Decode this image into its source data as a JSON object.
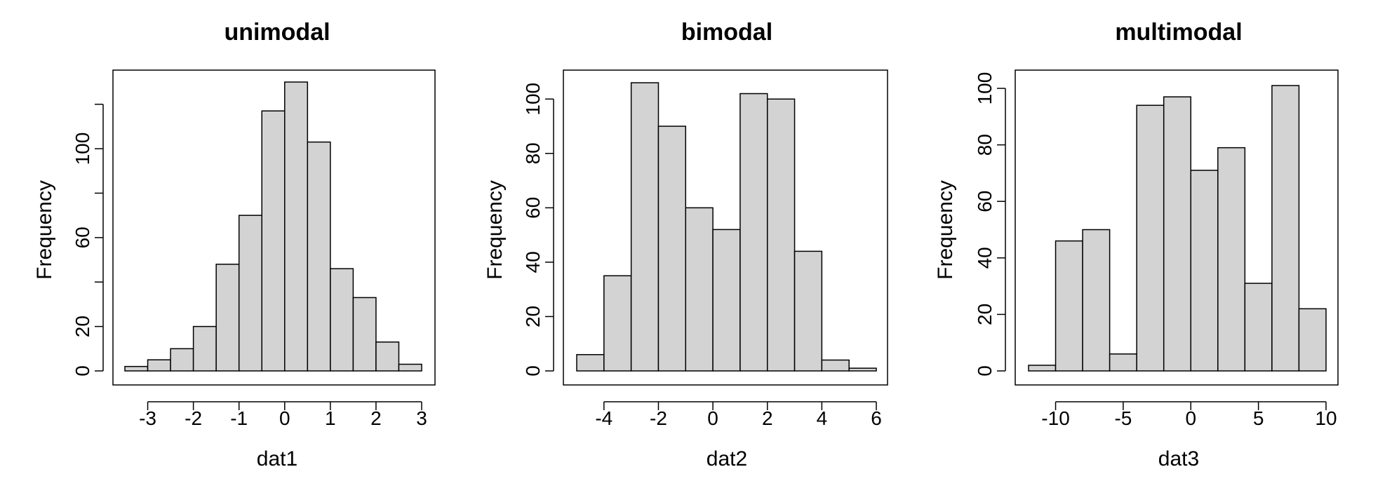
{
  "chart_data": [
    {
      "type": "bar",
      "title": "unimodal",
      "xlabel": "dat1",
      "ylabel": "Frequency",
      "bin_edges": [
        -3.5,
        -3.0,
        -2.5,
        -2.0,
        -1.5,
        -1.0,
        -0.5,
        0.0,
        0.5,
        1.0,
        1.5,
        2.0,
        2.5,
        3.0
      ],
      "values": [
        2,
        5,
        10,
        20,
        48,
        70,
        117,
        130,
        103,
        46,
        33,
        13,
        3
      ],
      "xlim": [
        -3.5,
        3.0
      ],
      "ylim": [
        0,
        130
      ],
      "x_ticks": [
        -3,
        -2,
        -1,
        0,
        1,
        2,
        3
      ],
      "x_tick_labels": [
        "-3",
        "-2",
        "-1",
        "0",
        "1",
        "2",
        "3"
      ],
      "y_ticks": [
        0,
        20,
        40,
        60,
        80,
        100,
        120
      ],
      "y_tick_labels": [
        "0",
        "20",
        "",
        "60",
        "",
        "100",
        ""
      ]
    },
    {
      "type": "bar",
      "title": "bimodal",
      "xlabel": "dat2",
      "ylabel": "Frequency",
      "bin_edges": [
        -5,
        -4,
        -3,
        -2,
        -1,
        0,
        1,
        2,
        3,
        4,
        5,
        6
      ],
      "values": [
        6,
        35,
        106,
        90,
        60,
        52,
        102,
        100,
        44,
        4,
        1
      ],
      "xlim": [
        -5,
        6
      ],
      "ylim": [
        0,
        106
      ],
      "x_ticks": [
        -4,
        -2,
        0,
        2,
        4,
        6
      ],
      "x_tick_labels": [
        "-4",
        "-2",
        "0",
        "2",
        "4",
        "6"
      ],
      "y_ticks": [
        0,
        20,
        40,
        60,
        80,
        100
      ],
      "y_tick_labels": [
        "0",
        "20",
        "40",
        "60",
        "80",
        "100"
      ]
    },
    {
      "type": "bar",
      "title": "multimodal",
      "xlabel": "dat3",
      "ylabel": "Frequency",
      "bin_edges": [
        -12,
        -10,
        -8,
        -6,
        -4,
        -2,
        0,
        2,
        4,
        6,
        8,
        10
      ],
      "values": [
        2,
        46,
        50,
        6,
        94,
        97,
        71,
        79,
        31,
        101,
        22
      ],
      "xlim": [
        -12,
        10
      ],
      "ylim": [
        0,
        101
      ],
      "x_ticks": [
        -10,
        -5,
        0,
        5,
        10
      ],
      "x_tick_labels": [
        "-10",
        "-5",
        "0",
        "5",
        "10"
      ],
      "y_ticks": [
        0,
        20,
        40,
        60,
        80,
        100
      ],
      "y_tick_labels": [
        "0",
        "20",
        "40",
        "60",
        "80",
        "100"
      ]
    }
  ],
  "colors": {
    "bar_fill": "#d3d3d3",
    "bar_stroke": "#000000",
    "axis": "#000000",
    "background": "#ffffff"
  }
}
